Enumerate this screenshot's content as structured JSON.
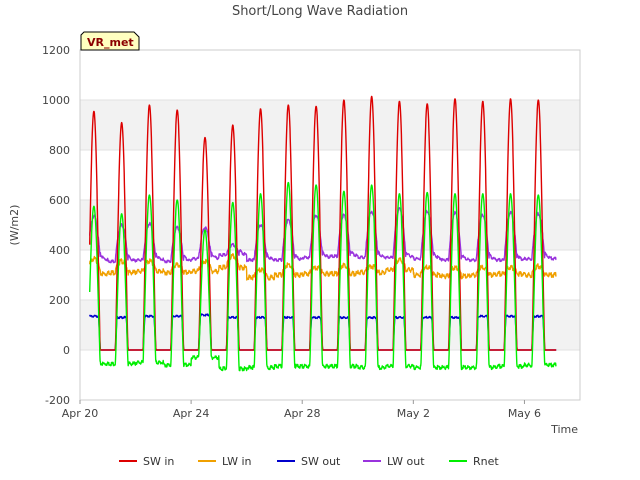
{
  "chart_data": {
    "type": "line",
    "title": "Short/Long Wave Radiation",
    "xlabel": "Time",
    "ylabel": "(W/m2)",
    "badge": "VR_met",
    "ylim": [
      -200,
      1200
    ],
    "yticks": [
      -200,
      0,
      200,
      400,
      600,
      800,
      1000,
      1200
    ],
    "xlim": [
      "2024-04-20",
      "2024-05-08"
    ],
    "xticks": [
      {
        "date": "2024-04-20",
        "label": "Apr 20"
      },
      {
        "date": "2024-04-24",
        "label": "Apr 24"
      },
      {
        "date": "2024-04-28",
        "label": "Apr 28"
      },
      {
        "date": "2024-05-02",
        "label": "May 2"
      },
      {
        "date": "2024-05-06",
        "label": "May 6"
      }
    ],
    "grid": true,
    "legend_position": "bottom",
    "series": [
      {
        "name": "SW in",
        "color": "#dd0000",
        "peaks": [
          955,
          910,
          980,
          960,
          850,
          900,
          965,
          980,
          975,
          1000,
          1015,
          995,
          985,
          1005,
          995,
          1005,
          1000
        ],
        "night": 0
      },
      {
        "name": "LW in",
        "color": "#f0a000",
        "day": [
          365,
          355,
          355,
          340,
          355,
          375,
          320,
          340,
          330,
          340,
          335,
          360,
          330,
          330,
          330,
          330,
          335
        ],
        "night": [
          305,
          310,
          315,
          310,
          315,
          330,
          290,
          300,
          305,
          305,
          310,
          320,
          300,
          295,
          300,
          305,
          300
        ]
      },
      {
        "name": "SW out",
        "color": "#0000cc",
        "peaks": [
          135,
          130,
          135,
          135,
          140,
          130,
          130,
          130,
          130,
          130,
          130,
          130,
          130,
          130,
          135,
          135,
          135
        ],
        "night": 0
      },
      {
        "name": "LW out",
        "color": "#9933dd",
        "peaks": [
          535,
          500,
          505,
          490,
          490,
          420,
          500,
          520,
          540,
          540,
          555,
          565,
          555,
          550,
          540,
          550,
          545
        ],
        "night": [
          360,
          355,
          360,
          355,
          365,
          380,
          360,
          360,
          370,
          375,
          370,
          370,
          365,
          360,
          360,
          360,
          365
        ]
      },
      {
        "name": "Rnet",
        "color": "#00ee00",
        "peaks": [
          575,
          545,
          620,
          600,
          480,
          590,
          625,
          670,
          660,
          635,
          660,
          625,
          630,
          625,
          625,
          625,
          620
        ],
        "night": [
          -55,
          -55,
          -50,
          -60,
          -30,
          -75,
          -70,
          -65,
          -65,
          -65,
          -70,
          -65,
          -70,
          -70,
          -70,
          -65,
          -60
        ]
      }
    ]
  }
}
